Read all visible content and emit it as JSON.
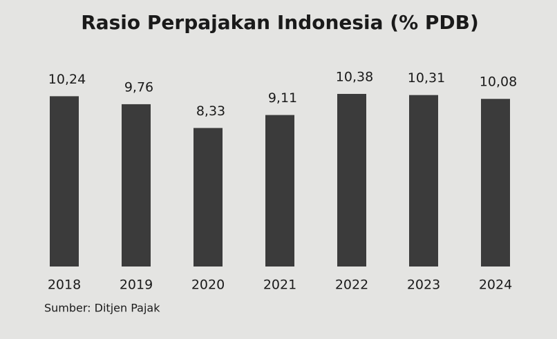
{
  "chart_data": {
    "type": "bar",
    "title": "Rasio Perpajakan Indonesia (% PDB)",
    "categories": [
      "2018",
      "2019",
      "2020",
      "2021",
      "2022",
      "2023",
      "2024"
    ],
    "values": [
      10.24,
      9.76,
      8.33,
      9.11,
      10.38,
      10.31,
      10.08
    ],
    "value_labels": [
      "10,24",
      "9,76",
      "8,33",
      "9,11",
      "10,38",
      "10,31",
      "10,08"
    ],
    "color": "#3b3b3b",
    "source": "Sumber: Ditjen Pajak"
  }
}
